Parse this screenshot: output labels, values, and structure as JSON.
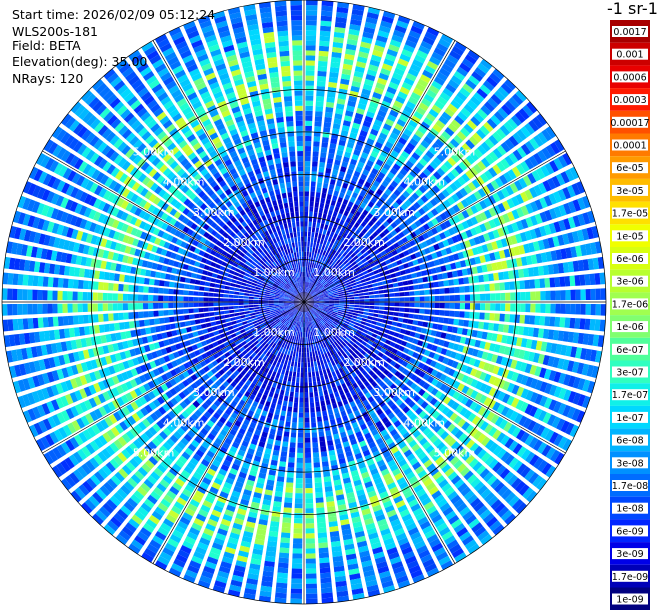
{
  "header": {
    "start_time": "Start time: 2026/02/09 05:12:24",
    "instrument": "WLS200s-181",
    "field": "Field: BETA",
    "elevation": "Elevation(deg): 35.00",
    "nrays": "NRays: 120"
  },
  "colorbar": {
    "title": "-1 sr-1",
    "labels": [
      "0.0017",
      "0.001",
      "0.0006",
      "0.0003",
      "0.00017",
      "0.0001",
      "6e-05",
      "3e-05",
      "1.7e-05",
      "1e-05",
      "6e-06",
      "3e-06",
      "1.7e-06",
      "1e-06",
      "6e-07",
      "3e-07",
      "1.7e-07",
      "1e-07",
      "6e-08",
      "3e-08",
      "1.7e-08",
      "1e-08",
      "6e-09",
      "3e-09",
      "1.7e-09",
      "1e-09"
    ],
    "colors": [
      "#a80000",
      "#cc0000",
      "#e80000",
      "#ff1a00",
      "#ff5000",
      "#ff7a00",
      "#ff9a00",
      "#ffbc00",
      "#ffe000",
      "#f0ff00",
      "#d8ff10",
      "#b8ff30",
      "#a0ff50",
      "#80ff70",
      "#50ff9a",
      "#30ffc0",
      "#10f0e8",
      "#00d8ff",
      "#00b4ff",
      "#0090ff",
      "#006cff",
      "#0048ff",
      "#0024ff",
      "#0000e8",
      "#0000b8",
      "#000080"
    ]
  },
  "chart_data": {
    "type": "heatmap",
    "projection": "polar PPI",
    "field": "BETA",
    "nrays": 120,
    "max_range_km": 6.0,
    "range_rings_km": [
      1,
      2,
      3,
      4,
      5
    ],
    "range_ring_labels": [
      "1.00km",
      "2.00km",
      "3.00km",
      "4.00km",
      "5.00km"
    ],
    "grid": true,
    "description_bands": [
      {
        "range_km": [
          0.0,
          2.3
        ],
        "dominant_value": "1e-08"
      },
      {
        "range_km": [
          2.3,
          3.6
        ],
        "dominant_value": "3e-08"
      },
      {
        "range_km": [
          3.6,
          5.2
        ],
        "dominant_value": "1e-07"
      },
      {
        "range_km": [
          5.2,
          6.0
        ],
        "dominant_value": "6e-08"
      }
    ]
  }
}
